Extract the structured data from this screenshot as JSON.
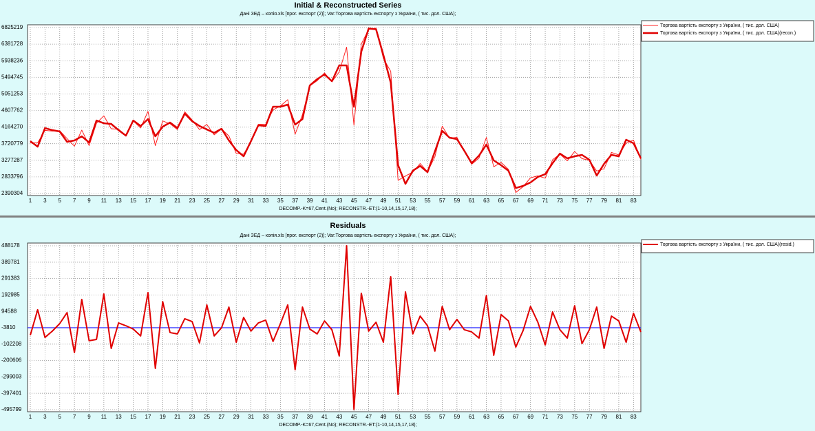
{
  "chart_data": [
    {
      "type": "line",
      "title": "Initial & Reconstructed Series",
      "subtitle": "Дані ЗЕД – копія.xls [прог. експорт (2)];   Var:Торгова вартість експорту з України, ( тис. дол. США);",
      "x_label": "DECOMP.-K=67,Cent.(No);   RECONSTR.-ET:(1-10,14,15,17,18);",
      "x": [
        1,
        2,
        3,
        4,
        5,
        6,
        7,
        8,
        9,
        10,
        11,
        12,
        13,
        14,
        15,
        16,
        17,
        18,
        19,
        20,
        21,
        22,
        23,
        24,
        25,
        26,
        27,
        28,
        29,
        30,
        31,
        32,
        33,
        34,
        35,
        36,
        37,
        38,
        39,
        40,
        41,
        42,
        43,
        44,
        45,
        46,
        47,
        48,
        49,
        50,
        51,
        52,
        53,
        54,
        55,
        56,
        57,
        58,
        59,
        60,
        61,
        62,
        63,
        64,
        65,
        66,
        67,
        68,
        69,
        70,
        71,
        72,
        73,
        74,
        75,
        76,
        77,
        78,
        79,
        80,
        81,
        82,
        83,
        84
      ],
      "xlim": [
        1,
        84
      ],
      "xticks": [
        1,
        3,
        5,
        7,
        9,
        11,
        13,
        15,
        17,
        19,
        21,
        23,
        25,
        27,
        29,
        31,
        33,
        35,
        37,
        39,
        41,
        43,
        45,
        47,
        49,
        51,
        53,
        55,
        57,
        59,
        61,
        63,
        65,
        67,
        69,
        71,
        73,
        75,
        77,
        79,
        81,
        83
      ],
      "ylim": [
        2390304,
        6825219
      ],
      "yticks": [
        2390304,
        2833796,
        3277287,
        3720779,
        4164270,
        4607762,
        5051253,
        5494745,
        5938236,
        6381728,
        6825219
      ],
      "grid": true,
      "legend": "right",
      "series": [
        {
          "name": "Торгова вартість експорту з України, ( тис. дол. США)",
          "color": "#ff2020",
          "width": 1,
          "values": [
            3740000,
            3745000,
            4076000,
            4059000,
            4067000,
            3857000,
            3654000,
            4084000,
            3670000,
            4267000,
            4466000,
            4121000,
            4108000,
            3944000,
            4329000,
            4141000,
            4585000,
            3670000,
            4328000,
            4253000,
            4097000,
            4575000,
            4355000,
            4099000,
            4234000,
            3957000,
            4116000,
            3927000,
            3459000,
            3442000,
            3765000,
            4237000,
            4236000,
            4623000,
            4730000,
            4897000,
            3974000,
            4498000,
            5267000,
            5404000,
            5611000,
            5374000,
            5640000,
            6301000,
            4213000,
            6384000,
            6776000,
            6809000,
            5998000,
            5655000,
            2740000,
            2859000,
            2957000,
            3192000,
            2969000,
            3369000,
            4189000,
            3865000,
            3890000,
            3515000,
            3171000,
            3336000,
            3887000,
            3105000,
            3220000,
            3035000,
            2417000,
            2573000,
            2809000,
            2861000,
            2799000,
            3291000,
            3441000,
            3263000,
            3512000,
            3322000,
            3276000,
            2989000,
            3054000,
            3487000,
            3421000,
            3735000,
            3817000,
            3300000
          ]
        },
        {
          "name": "Торгова вартість експорту з України, ( тис. дол. США)(recon.)",
          "color": "#e00000",
          "width": 2.5,
          "values": [
            3789000,
            3641000,
            4138000,
            4083000,
            4046000,
            3770000,
            3807000,
            3918000,
            3752000,
            4341000,
            4267000,
            4249000,
            4083000,
            3936000,
            4341000,
            4194000,
            4378000,
            3918000,
            4175000,
            4286000,
            4138000,
            4525000,
            4322000,
            4194000,
            4101000,
            4010000,
            4120000,
            3807000,
            3550000,
            3384000,
            3789000,
            4212000,
            4194000,
            4709000,
            4709000,
            4764000,
            4230000,
            4378000,
            5279000,
            5445000,
            5574000,
            5390000,
            5813000,
            5813000,
            4709000,
            6181000,
            6800000,
            6780000,
            6089000,
            5353000,
            3145000,
            2648000,
            2998000,
            3126000,
            2961000,
            3513000,
            4065000,
            3881000,
            3844000,
            3531000,
            3200000,
            3402000,
            3697000,
            3274000,
            3145000,
            2998000,
            2537000,
            2593000,
            2685000,
            2832000,
            2906000,
            3200000,
            3457000,
            3329000,
            3384000,
            3421000,
            3292000,
            2869000,
            3182000,
            3421000,
            3384000,
            3826000,
            3734000,
            3329000
          ]
        }
      ]
    },
    {
      "type": "line",
      "title": "Residuals",
      "subtitle": "Дані ЗЕД – копія.xls [прог. експорт (2)];   Var:Торгова вартість експорту з України, ( тис. дол. США);",
      "x_label": "DECOMP.-K=67,Cent.(No);   RECONSTR.-ET:(1-10,14,15,17,18);",
      "x": [
        1,
        2,
        3,
        4,
        5,
        6,
        7,
        8,
        9,
        10,
        11,
        12,
        13,
        14,
        15,
        16,
        17,
        18,
        19,
        20,
        21,
        22,
        23,
        24,
        25,
        26,
        27,
        28,
        29,
        30,
        31,
        32,
        33,
        34,
        35,
        36,
        37,
        38,
        39,
        40,
        41,
        42,
        43,
        44,
        45,
        46,
        47,
        48,
        49,
        50,
        51,
        52,
        53,
        54,
        55,
        56,
        57,
        58,
        59,
        60,
        61,
        62,
        63,
        64,
        65,
        66,
        67,
        68,
        69,
        70,
        71,
        72,
        73,
        74,
        75,
        76,
        77,
        78,
        79,
        80,
        81,
        82,
        83,
        84
      ],
      "xlim": [
        1,
        84
      ],
      "xticks": [
        1,
        3,
        5,
        7,
        9,
        11,
        13,
        15,
        17,
        19,
        21,
        23,
        25,
        27,
        29,
        31,
        33,
        35,
        37,
        39,
        41,
        43,
        45,
        47,
        49,
        51,
        53,
        55,
        57,
        59,
        61,
        63,
        65,
        67,
        69,
        71,
        73,
        75,
        77,
        79,
        81,
        83
      ],
      "ylim": [
        -495799,
        488178
      ],
      "yticks": [
        -495799,
        -397401,
        -299003,
        -200606,
        -102208,
        -3810,
        94588,
        192985,
        291383,
        389781,
        488178
      ],
      "grid": true,
      "legend": "right",
      "reference_line": {
        "value": -3810,
        "color": "#2020ff"
      },
      "series": [
        {
          "name": "Торгова вартість експорту з України, ( тис. дол. США)(resid.)",
          "color": "#e00000",
          "width": 2,
          "values": [
            -49000,
            104000,
            -62000,
            -24000,
            21000,
            87000,
            -153000,
            166000,
            -82000,
            -74000,
            199000,
            -128000,
            25000,
            8000,
            -12000,
            -53000,
            207000,
            -248000,
            153000,
            -33000,
            -41000,
            50000,
            33000,
            -95000,
            133000,
            -53000,
            -4000,
            120000,
            -91000,
            58000,
            -24000,
            25000,
            42000,
            -86000,
            21000,
            133000,
            -256000,
            120000,
            -12000,
            -41000,
            37000,
            -16000,
            -173000,
            488000,
            -495000,
            203000,
            -24000,
            29000,
            -91000,
            302000,
            -405000,
            211000,
            -41000,
            66000,
            8000,
            -144000,
            124000,
            -16000,
            46000,
            -16000,
            -29000,
            -66000,
            190000,
            -169000,
            75000,
            37000,
            -120000,
            -20000,
            124000,
            29000,
            -107000,
            91000,
            -16000,
            -66000,
            128000,
            -99000,
            -16000,
            120000,
            -128000,
            66000,
            37000,
            -91000,
            83000,
            -29000
          ]
        }
      ]
    }
  ]
}
